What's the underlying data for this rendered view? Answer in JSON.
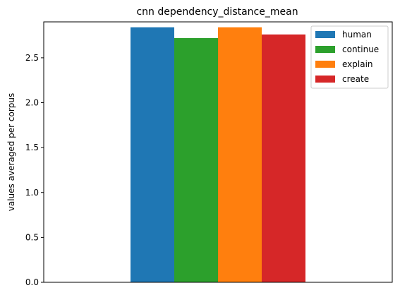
{
  "chart_data": {
    "type": "bar",
    "title": "cnn dependency_distance_mean",
    "xlabel": "",
    "ylabel": "values averaged per corpus",
    "ylim": [
      0,
      2.9
    ],
    "yticks": [
      "0.0",
      "0.5",
      "1.0",
      "1.5",
      "2.0",
      "2.5"
    ],
    "yticks_values": [
      0,
      0.5,
      1.0,
      1.5,
      2.0,
      2.5
    ],
    "grid": false,
    "legend_position": "top-right",
    "series": [
      {
        "name": "human",
        "value": 2.84,
        "color": "#1f77b4"
      },
      {
        "name": "continue",
        "value": 2.72,
        "color": "#2ca02c"
      },
      {
        "name": "explain",
        "value": 2.84,
        "color": "#ff7f0e"
      },
      {
        "name": "create",
        "value": 2.76,
        "color": "#d62728"
      }
    ]
  }
}
